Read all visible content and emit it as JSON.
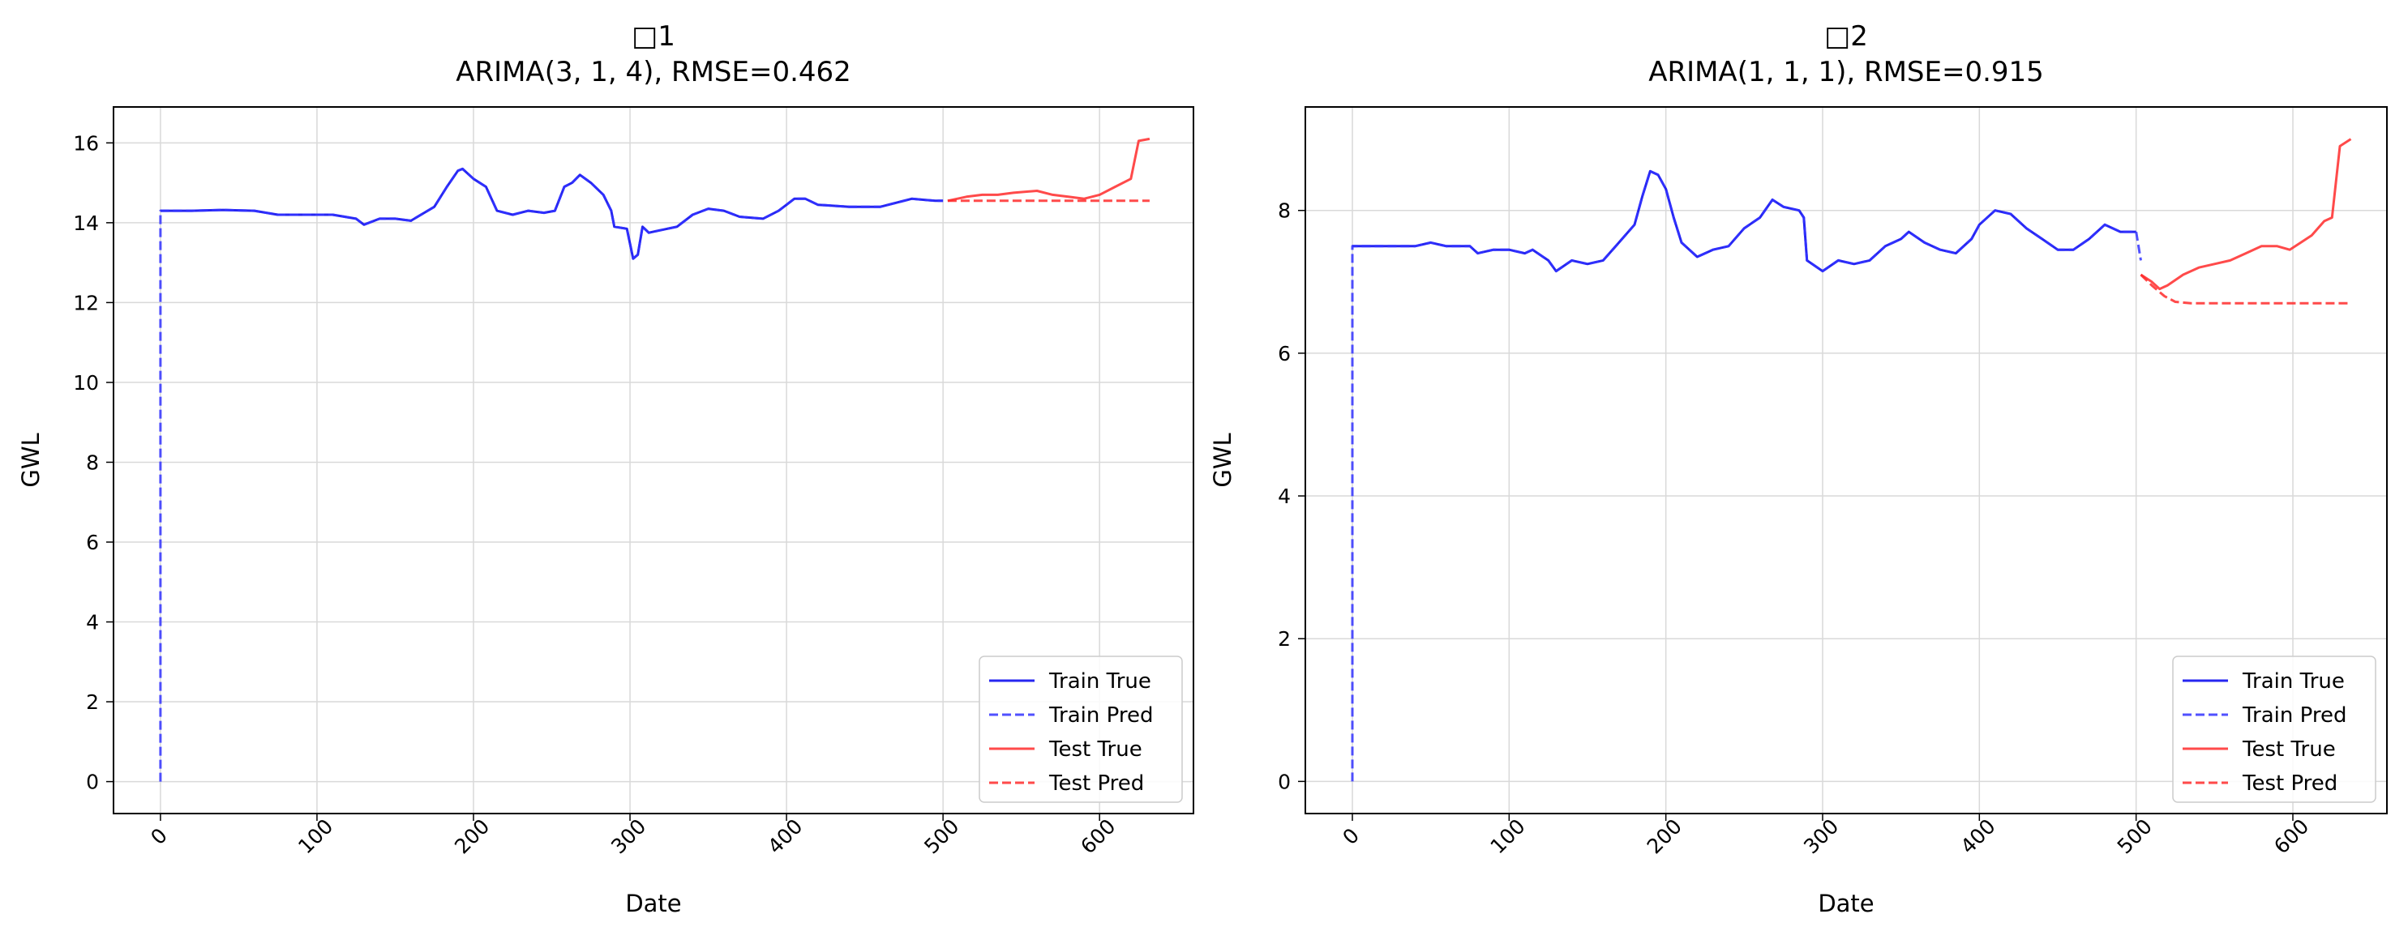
{
  "chart_data": [
    {
      "type": "line",
      "title": "□1",
      "subtitle": "ARIMA(3, 1, 4), RMSE=0.462",
      "xlabel": "Date",
      "ylabel": "GWL",
      "xlim": [
        -30,
        660
      ],
      "ylim": [
        -0.8,
        16.9
      ],
      "xticks": [
        0,
        100,
        200,
        300,
        400,
        500,
        600
      ],
      "yticks": [
        0,
        2,
        4,
        6,
        8,
        10,
        12,
        14,
        16
      ],
      "grid": true,
      "legend_position": "lower-right",
      "series": [
        {
          "name": "Train True",
          "color": "#0000ee",
          "dash": "solid",
          "points": [
            [
              0,
              14.3
            ],
            [
              20,
              14.3
            ],
            [
              40,
              14.32
            ],
            [
              60,
              14.3
            ],
            [
              75,
              14.2
            ],
            [
              90,
              14.2
            ],
            [
              110,
              14.2
            ],
            [
              125,
              14.1
            ],
            [
              130,
              13.95
            ],
            [
              140,
              14.1
            ],
            [
              150,
              14.1
            ],
            [
              160,
              14.05
            ],
            [
              175,
              14.4
            ],
            [
              183,
              14.9
            ],
            [
              190,
              15.3
            ],
            [
              193,
              15.35
            ],
            [
              200,
              15.1
            ],
            [
              208,
              14.9
            ],
            [
              215,
              14.3
            ],
            [
              225,
              14.2
            ],
            [
              235,
              14.3
            ],
            [
              245,
              14.25
            ],
            [
              252,
              14.3
            ],
            [
              258,
              14.9
            ],
            [
              263,
              15.0
            ],
            [
              268,
              15.2
            ],
            [
              275,
              15.0
            ],
            [
              283,
              14.7
            ],
            [
              288,
              14.3
            ],
            [
              290,
              13.9
            ],
            [
              298,
              13.85
            ],
            [
              302,
              13.1
            ],
            [
              305,
              13.2
            ],
            [
              308,
              13.9
            ],
            [
              312,
              13.75
            ],
            [
              318,
              13.8
            ],
            [
              330,
              13.9
            ],
            [
              340,
              14.2
            ],
            [
              350,
              14.35
            ],
            [
              360,
              14.3
            ],
            [
              370,
              14.15
            ],
            [
              385,
              14.1
            ],
            [
              395,
              14.3
            ],
            [
              405,
              14.6
            ],
            [
              412,
              14.6
            ],
            [
              420,
              14.45
            ],
            [
              440,
              14.4
            ],
            [
              460,
              14.4
            ],
            [
              480,
              14.6
            ],
            [
              495,
              14.55
            ],
            [
              500,
              14.55
            ]
          ]
        },
        {
          "name": "Train Pred",
          "color": "#3333ff",
          "dash": "dashed",
          "points": [
            [
              0,
              0
            ],
            [
              0,
              14.3
            ],
            [
              20,
              14.3
            ],
            [
              40,
              14.32
            ],
            [
              60,
              14.3
            ],
            [
              75,
              14.2
            ],
            [
              90,
              14.2
            ],
            [
              110,
              14.2
            ],
            [
              125,
              14.1
            ],
            [
              130,
              13.95
            ],
            [
              140,
              14.1
            ],
            [
              150,
              14.1
            ],
            [
              160,
              14.05
            ],
            [
              175,
              14.4
            ],
            [
              183,
              14.9
            ],
            [
              190,
              15.3
            ],
            [
              193,
              15.35
            ],
            [
              200,
              15.1
            ],
            [
              208,
              14.9
            ],
            [
              215,
              14.3
            ],
            [
              225,
              14.2
            ],
            [
              235,
              14.3
            ],
            [
              245,
              14.25
            ],
            [
              252,
              14.3
            ],
            [
              258,
              14.9
            ],
            [
              263,
              15.0
            ],
            [
              268,
              15.2
            ],
            [
              275,
              15.0
            ],
            [
              283,
              14.7
            ],
            [
              288,
              14.3
            ],
            [
              290,
              13.9
            ],
            [
              298,
              13.85
            ],
            [
              302,
              13.1
            ],
            [
              305,
              13.2
            ],
            [
              308,
              13.9
            ],
            [
              312,
              13.75
            ],
            [
              318,
              13.8
            ],
            [
              330,
              13.9
            ],
            [
              340,
              14.2
            ],
            [
              350,
              14.35
            ],
            [
              360,
              14.3
            ],
            [
              370,
              14.15
            ],
            [
              385,
              14.1
            ],
            [
              395,
              14.3
            ],
            [
              405,
              14.6
            ],
            [
              412,
              14.6
            ],
            [
              420,
              14.45
            ],
            [
              440,
              14.4
            ],
            [
              460,
              14.4
            ],
            [
              480,
              14.6
            ],
            [
              495,
              14.55
            ],
            [
              500,
              14.55
            ]
          ]
        },
        {
          "name": "Test True",
          "color": "#ff2a2a",
          "dash": "solid",
          "points": [
            [
              503,
              14.55
            ],
            [
              515,
              14.65
            ],
            [
              525,
              14.7
            ],
            [
              535,
              14.7
            ],
            [
              545,
              14.75
            ],
            [
              560,
              14.8
            ],
            [
              570,
              14.7
            ],
            [
              580,
              14.65
            ],
            [
              590,
              14.6
            ],
            [
              600,
              14.7
            ],
            [
              610,
              14.9
            ],
            [
              620,
              15.1
            ],
            [
              625,
              16.05
            ],
            [
              632,
              16.1
            ]
          ]
        },
        {
          "name": "Test Pred",
          "color": "#ff2a2a",
          "dash": "dashed",
          "points": [
            [
              503,
              14.55
            ],
            [
              632,
              14.55
            ]
          ]
        }
      ]
    },
    {
      "type": "line",
      "title": "□2",
      "subtitle": "ARIMA(1, 1, 1), RMSE=0.915",
      "xlabel": "Date",
      "ylabel": "GWL",
      "xlim": [
        -30,
        660
      ],
      "ylim": [
        -0.45,
        9.45
      ],
      "xticks": [
        0,
        100,
        200,
        300,
        400,
        500,
        600
      ],
      "yticks": [
        0,
        2,
        4,
        6,
        8
      ],
      "grid": true,
      "legend_position": "lower-right",
      "series": [
        {
          "name": "Train True",
          "color": "#0000ee",
          "dash": "solid",
          "points": [
            [
              0,
              7.5
            ],
            [
              20,
              7.5
            ],
            [
              40,
              7.5
            ],
            [
              50,
              7.55
            ],
            [
              60,
              7.5
            ],
            [
              75,
              7.5
            ],
            [
              80,
              7.4
            ],
            [
              90,
              7.45
            ],
            [
              100,
              7.45
            ],
            [
              110,
              7.4
            ],
            [
              115,
              7.45
            ],
            [
              125,
              7.3
            ],
            [
              130,
              7.15
            ],
            [
              140,
              7.3
            ],
            [
              150,
              7.25
            ],
            [
              160,
              7.3
            ],
            [
              170,
              7.55
            ],
            [
              180,
              7.8
            ],
            [
              185,
              8.2
            ],
            [
              190,
              8.55
            ],
            [
              195,
              8.5
            ],
            [
              200,
              8.3
            ],
            [
              205,
              7.9
            ],
            [
              210,
              7.55
            ],
            [
              220,
              7.35
            ],
            [
              230,
              7.45
            ],
            [
              240,
              7.5
            ],
            [
              250,
              7.75
            ],
            [
              260,
              7.9
            ],
            [
              268,
              8.15
            ],
            [
              275,
              8.05
            ],
            [
              285,
              8.0
            ],
            [
              288,
              7.9
            ],
            [
              290,
              7.3
            ],
            [
              300,
              7.15
            ],
            [
              310,
              7.3
            ],
            [
              320,
              7.25
            ],
            [
              330,
              7.3
            ],
            [
              340,
              7.5
            ],
            [
              350,
              7.6
            ],
            [
              355,
              7.7
            ],
            [
              365,
              7.55
            ],
            [
              375,
              7.45
            ],
            [
              385,
              7.4
            ],
            [
              395,
              7.6
            ],
            [
              400,
              7.8
            ],
            [
              410,
              8.0
            ],
            [
              420,
              7.95
            ],
            [
              430,
              7.75
            ],
            [
              440,
              7.6
            ],
            [
              450,
              7.45
            ],
            [
              460,
              7.45
            ],
            [
              470,
              7.6
            ],
            [
              480,
              7.8
            ],
            [
              490,
              7.7
            ],
            [
              500,
              7.7
            ]
          ]
        },
        {
          "name": "Train Pred",
          "color": "#3333ff",
          "dash": "dashed",
          "points": [
            [
              0,
              0
            ],
            [
              0,
              7.5
            ],
            [
              20,
              7.5
            ],
            [
              40,
              7.5
            ],
            [
              50,
              7.55
            ],
            [
              60,
              7.5
            ],
            [
              75,
              7.5
            ],
            [
              80,
              7.4
            ],
            [
              90,
              7.45
            ],
            [
              100,
              7.45
            ],
            [
              110,
              7.4
            ],
            [
              115,
              7.45
            ],
            [
              125,
              7.3
            ],
            [
              130,
              7.15
            ],
            [
              140,
              7.3
            ],
            [
              150,
              7.25
            ],
            [
              160,
              7.3
            ],
            [
              170,
              7.55
            ],
            [
              180,
              7.8
            ],
            [
              185,
              8.2
            ],
            [
              190,
              8.55
            ],
            [
              195,
              8.5
            ],
            [
              200,
              8.3
            ],
            [
              205,
              7.9
            ],
            [
              210,
              7.55
            ],
            [
              220,
              7.35
            ],
            [
              230,
              7.45
            ],
            [
              240,
              7.5
            ],
            [
              250,
              7.75
            ],
            [
              260,
              7.9
            ],
            [
              268,
              8.15
            ],
            [
              275,
              8.05
            ],
            [
              285,
              8.0
            ],
            [
              288,
              7.9
            ],
            [
              290,
              7.3
            ],
            [
              300,
              7.15
            ],
            [
              310,
              7.3
            ],
            [
              320,
              7.25
            ],
            [
              330,
              7.3
            ],
            [
              340,
              7.5
            ],
            [
              350,
              7.6
            ],
            [
              355,
              7.7
            ],
            [
              365,
              7.55
            ],
            [
              375,
              7.45
            ],
            [
              385,
              7.4
            ],
            [
              395,
              7.6
            ],
            [
              400,
              7.8
            ],
            [
              410,
              8.0
            ],
            [
              420,
              7.95
            ],
            [
              430,
              7.75
            ],
            [
              440,
              7.6
            ],
            [
              450,
              7.45
            ],
            [
              460,
              7.45
            ],
            [
              470,
              7.6
            ],
            [
              480,
              7.8
            ],
            [
              490,
              7.7
            ],
            [
              500,
              7.7
            ],
            [
              503,
              7.3
            ]
          ]
        },
        {
          "name": "Test True",
          "color": "#ff2a2a",
          "dash": "solid",
          "points": [
            [
              503,
              7.1
            ],
            [
              510,
              7.0
            ],
            [
              515,
              6.9
            ],
            [
              520,
              6.95
            ],
            [
              530,
              7.1
            ],
            [
              540,
              7.2
            ],
            [
              550,
              7.25
            ],
            [
              560,
              7.3
            ],
            [
              570,
              7.4
            ],
            [
              580,
              7.5
            ],
            [
              590,
              7.5
            ],
            [
              598,
              7.45
            ],
            [
              605,
              7.55
            ],
            [
              612,
              7.65
            ],
            [
              620,
              7.85
            ],
            [
              625,
              7.9
            ],
            [
              630,
              8.9
            ],
            [
              637,
              9.0
            ]
          ]
        },
        {
          "name": "Test Pred",
          "color": "#ff2a2a",
          "dash": "dashed",
          "points": [
            [
              503,
              7.1
            ],
            [
              510,
              6.95
            ],
            [
              518,
              6.8
            ],
            [
              525,
              6.72
            ],
            [
              535,
              6.7
            ],
            [
              550,
              6.7
            ],
            [
              580,
              6.7
            ],
            [
              610,
              6.7
            ],
            [
              637,
              6.7
            ]
          ]
        }
      ]
    }
  ]
}
